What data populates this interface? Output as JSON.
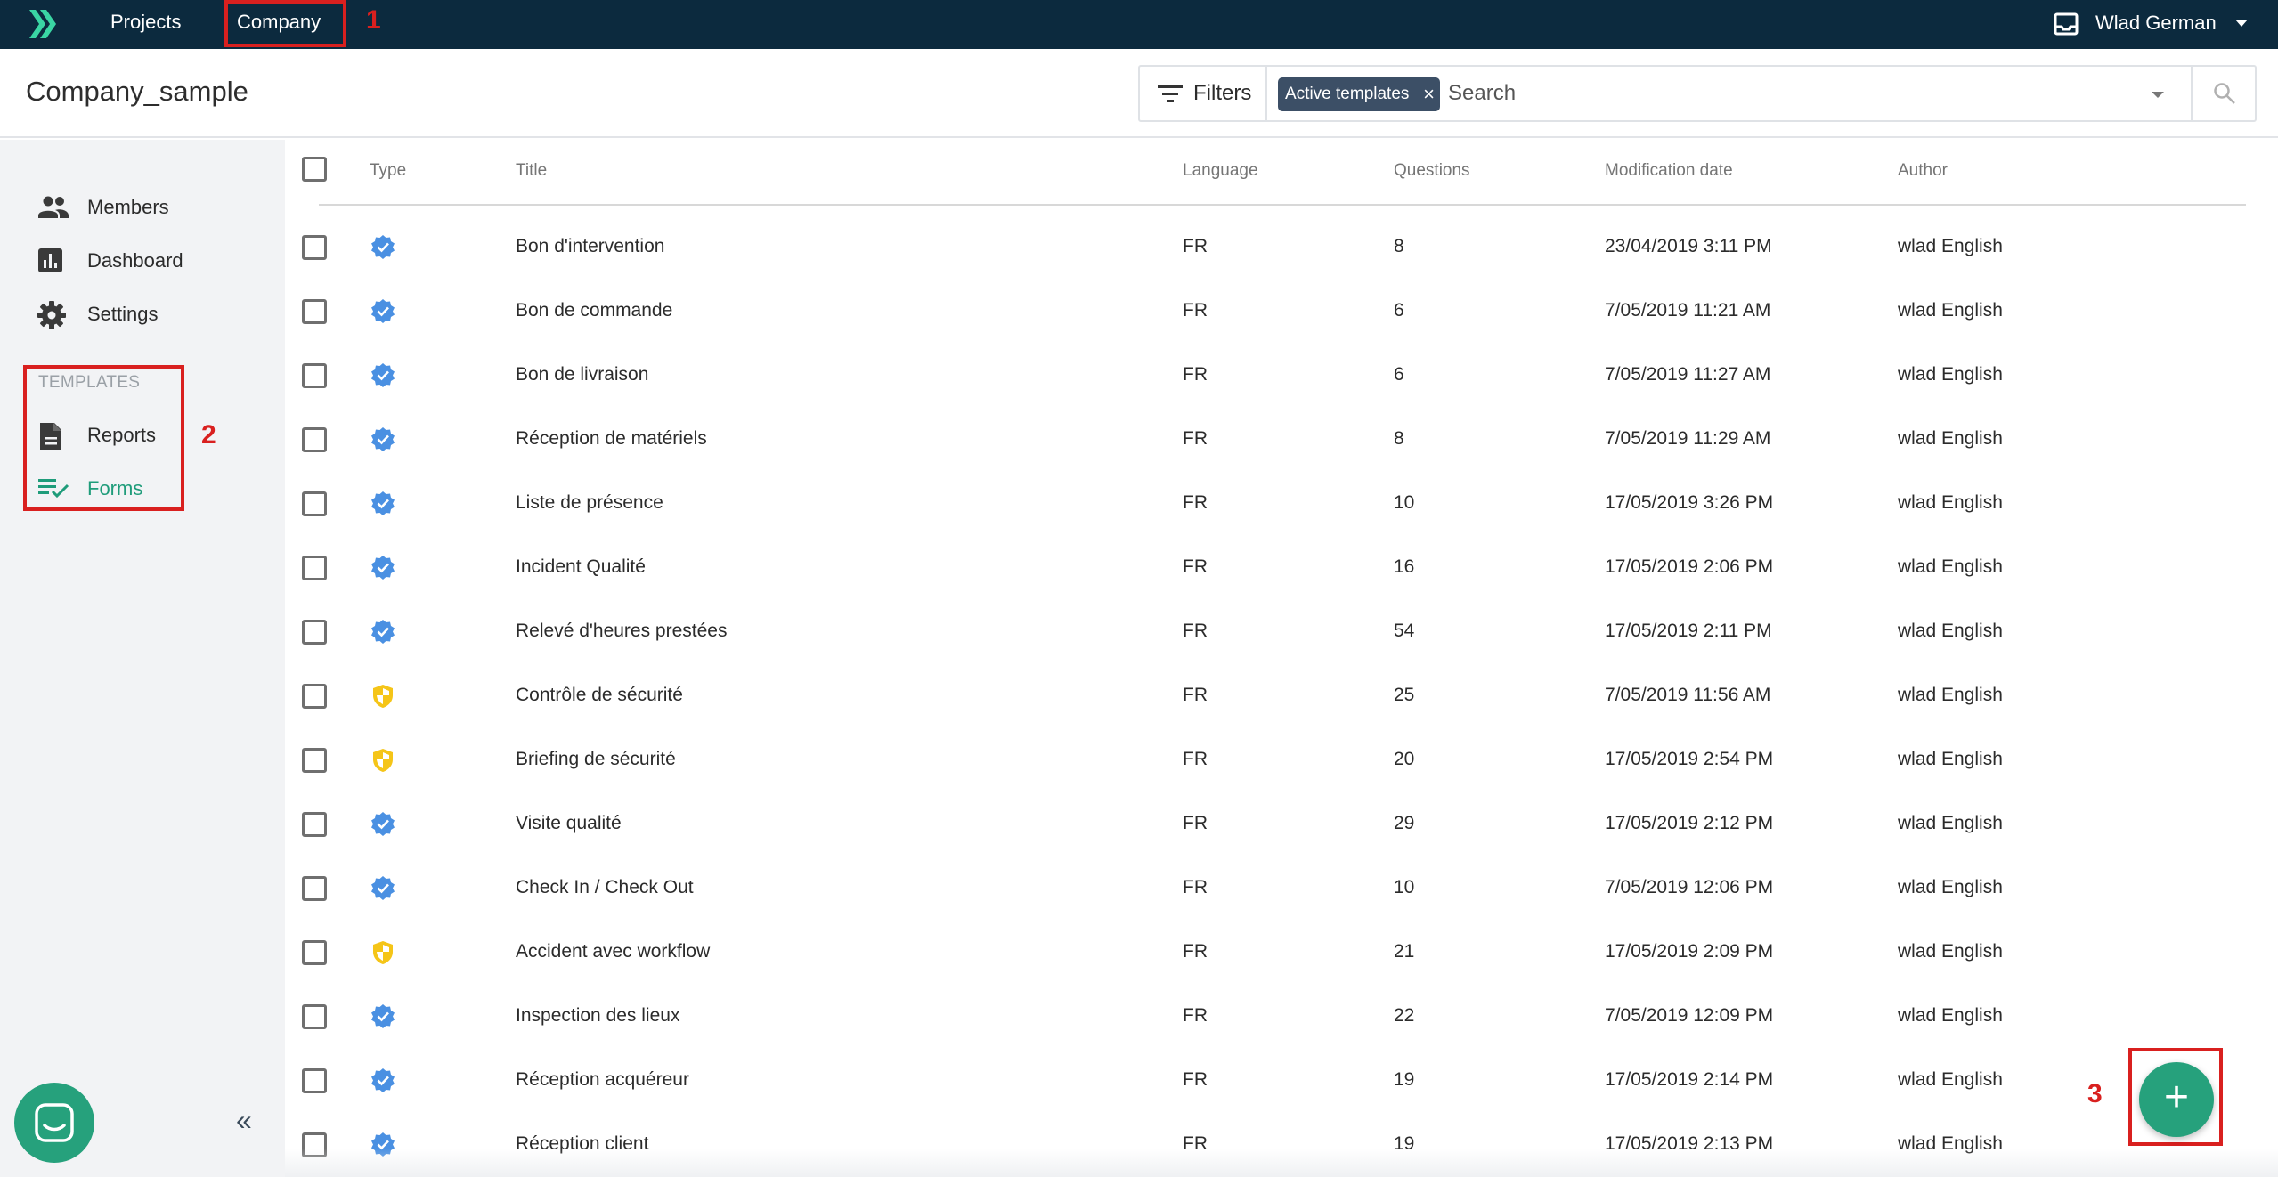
{
  "topbar": {
    "logo_icon": "chevrons-right-logo-icon",
    "nav": [
      {
        "label": "Projects"
      },
      {
        "label": "Company"
      }
    ],
    "user_name": "Wlad German",
    "annotation_1": "1"
  },
  "header": {
    "page_title": "Company_sample",
    "filters_label": "Filters",
    "active_chip": "Active templates",
    "chip_close": "×",
    "search_placeholder": "Search"
  },
  "sidebar": {
    "items": [
      {
        "label": "Members",
        "icon": "people-icon"
      },
      {
        "label": "Dashboard",
        "icon": "bar-chart-icon"
      },
      {
        "label": "Settings",
        "icon": "gear-icon"
      }
    ],
    "templates_heading": "TEMPLATES",
    "template_items": [
      {
        "label": "Reports",
        "icon": "document-icon"
      },
      {
        "label": "Forms",
        "icon": "checklist-icon"
      }
    ],
    "annotation_2": "2",
    "collapse_label": "«"
  },
  "table": {
    "headers": {
      "type": "Type",
      "title": "Title",
      "language": "Language",
      "questions": "Questions",
      "modified": "Modification date",
      "author": "Author"
    },
    "rows": [
      {
        "type": "verified",
        "title": "Bon d'intervention",
        "language": "FR",
        "questions": "8",
        "modified": "23/04/2019 3:11 PM",
        "author": "wlad English"
      },
      {
        "type": "verified",
        "title": "Bon de commande",
        "language": "FR",
        "questions": "6",
        "modified": "7/05/2019 11:21 AM",
        "author": "wlad English"
      },
      {
        "type": "verified",
        "title": "Bon de livraison",
        "language": "FR",
        "questions": "6",
        "modified": "7/05/2019 11:27 AM",
        "author": "wlad English"
      },
      {
        "type": "verified",
        "title": "Réception de matériels",
        "language": "FR",
        "questions": "8",
        "modified": "7/05/2019 11:29 AM",
        "author": "wlad English"
      },
      {
        "type": "verified",
        "title": "Liste de présence",
        "language": "FR",
        "questions": "10",
        "modified": "17/05/2019 3:26 PM",
        "author": "wlad English"
      },
      {
        "type": "verified",
        "title": "Incident Qualité",
        "language": "FR",
        "questions": "16",
        "modified": "17/05/2019 2:06 PM",
        "author": "wlad English"
      },
      {
        "type": "verified",
        "title": "Relevé d'heures prestées",
        "language": "FR",
        "questions": "54",
        "modified": "17/05/2019 2:11 PM",
        "author": "wlad English"
      },
      {
        "type": "safety",
        "title": "Contrôle de sécurité",
        "language": "FR",
        "questions": "25",
        "modified": "7/05/2019 11:56 AM",
        "author": "wlad English"
      },
      {
        "type": "safety",
        "title": "Briefing de sécurité",
        "language": "FR",
        "questions": "20",
        "modified": "17/05/2019 2:54 PM",
        "author": "wlad English"
      },
      {
        "type": "verified",
        "title": "Visite qualité",
        "language": "FR",
        "questions": "29",
        "modified": "17/05/2019 2:12 PM",
        "author": "wlad English"
      },
      {
        "type": "verified",
        "title": "Check In / Check Out",
        "language": "FR",
        "questions": "10",
        "modified": "7/05/2019 12:06 PM",
        "author": "wlad English"
      },
      {
        "type": "safety",
        "title": "Accident avec workflow",
        "language": "FR",
        "questions": "21",
        "modified": "17/05/2019 2:09 PM",
        "author": "wlad English"
      },
      {
        "type": "verified",
        "title": "Inspection des lieux",
        "language": "FR",
        "questions": "22",
        "modified": "7/05/2019 12:09 PM",
        "author": "wlad English"
      },
      {
        "type": "verified",
        "title": "Réception acquéreur",
        "language": "FR",
        "questions": "19",
        "modified": "17/05/2019 2:14 PM",
        "author": "wlad English"
      },
      {
        "type": "verified",
        "title": "Réception client",
        "language": "FR",
        "questions": "19",
        "modified": "17/05/2019 2:13 PM",
        "author": "wlad English"
      }
    ]
  },
  "fab": {
    "label": "+",
    "annotation_3": "3"
  },
  "colors": {
    "topbar": "#0c2a3e",
    "accent_green": "#26a17c",
    "verified_blue": "#4a90e2",
    "safety_yellow": "#f5c518",
    "annotation_red": "#d9201f"
  }
}
